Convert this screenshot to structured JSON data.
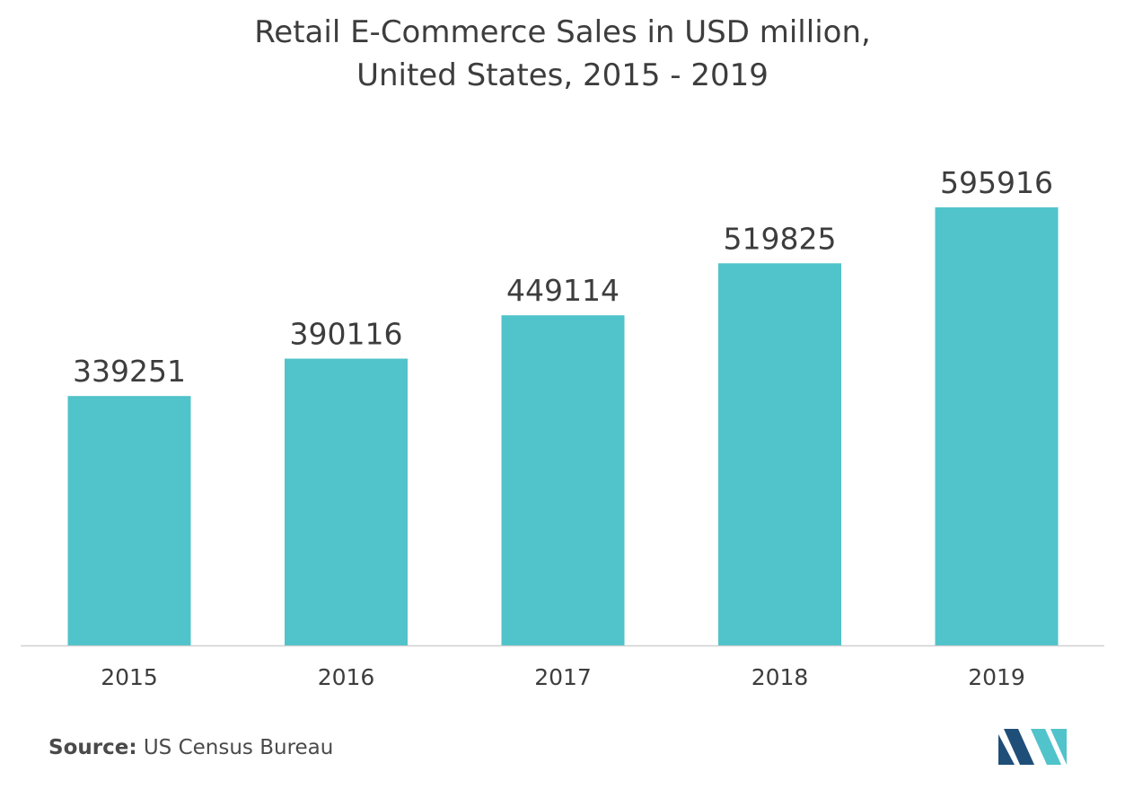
{
  "chart_data": {
    "type": "bar",
    "title_line1": "Retail E-Commerce Sales in USD million,",
    "title_line2": "United States, 2015 - 2019",
    "categories": [
      "2015",
      "2016",
      "2017",
      "2018",
      "2019"
    ],
    "values": [
      339251,
      390116,
      449114,
      519825,
      595916
    ],
    "data_labels": [
      "339251",
      "390116",
      "449114",
      "519825",
      "595916"
    ],
    "xlabel": "",
    "ylabel": "",
    "ylim": [
      0,
      595916
    ],
    "grid": false,
    "legend": "none",
    "bar_color": "#51c3ca",
    "axis_color": "#d0d0d0"
  },
  "source": {
    "label": "Source:",
    "text": "US Census Bureau"
  },
  "logo": {
    "icon": "mordor-intelligence-logo-icon",
    "dark_color": "#1f4e79",
    "light_color": "#51c3ca"
  }
}
